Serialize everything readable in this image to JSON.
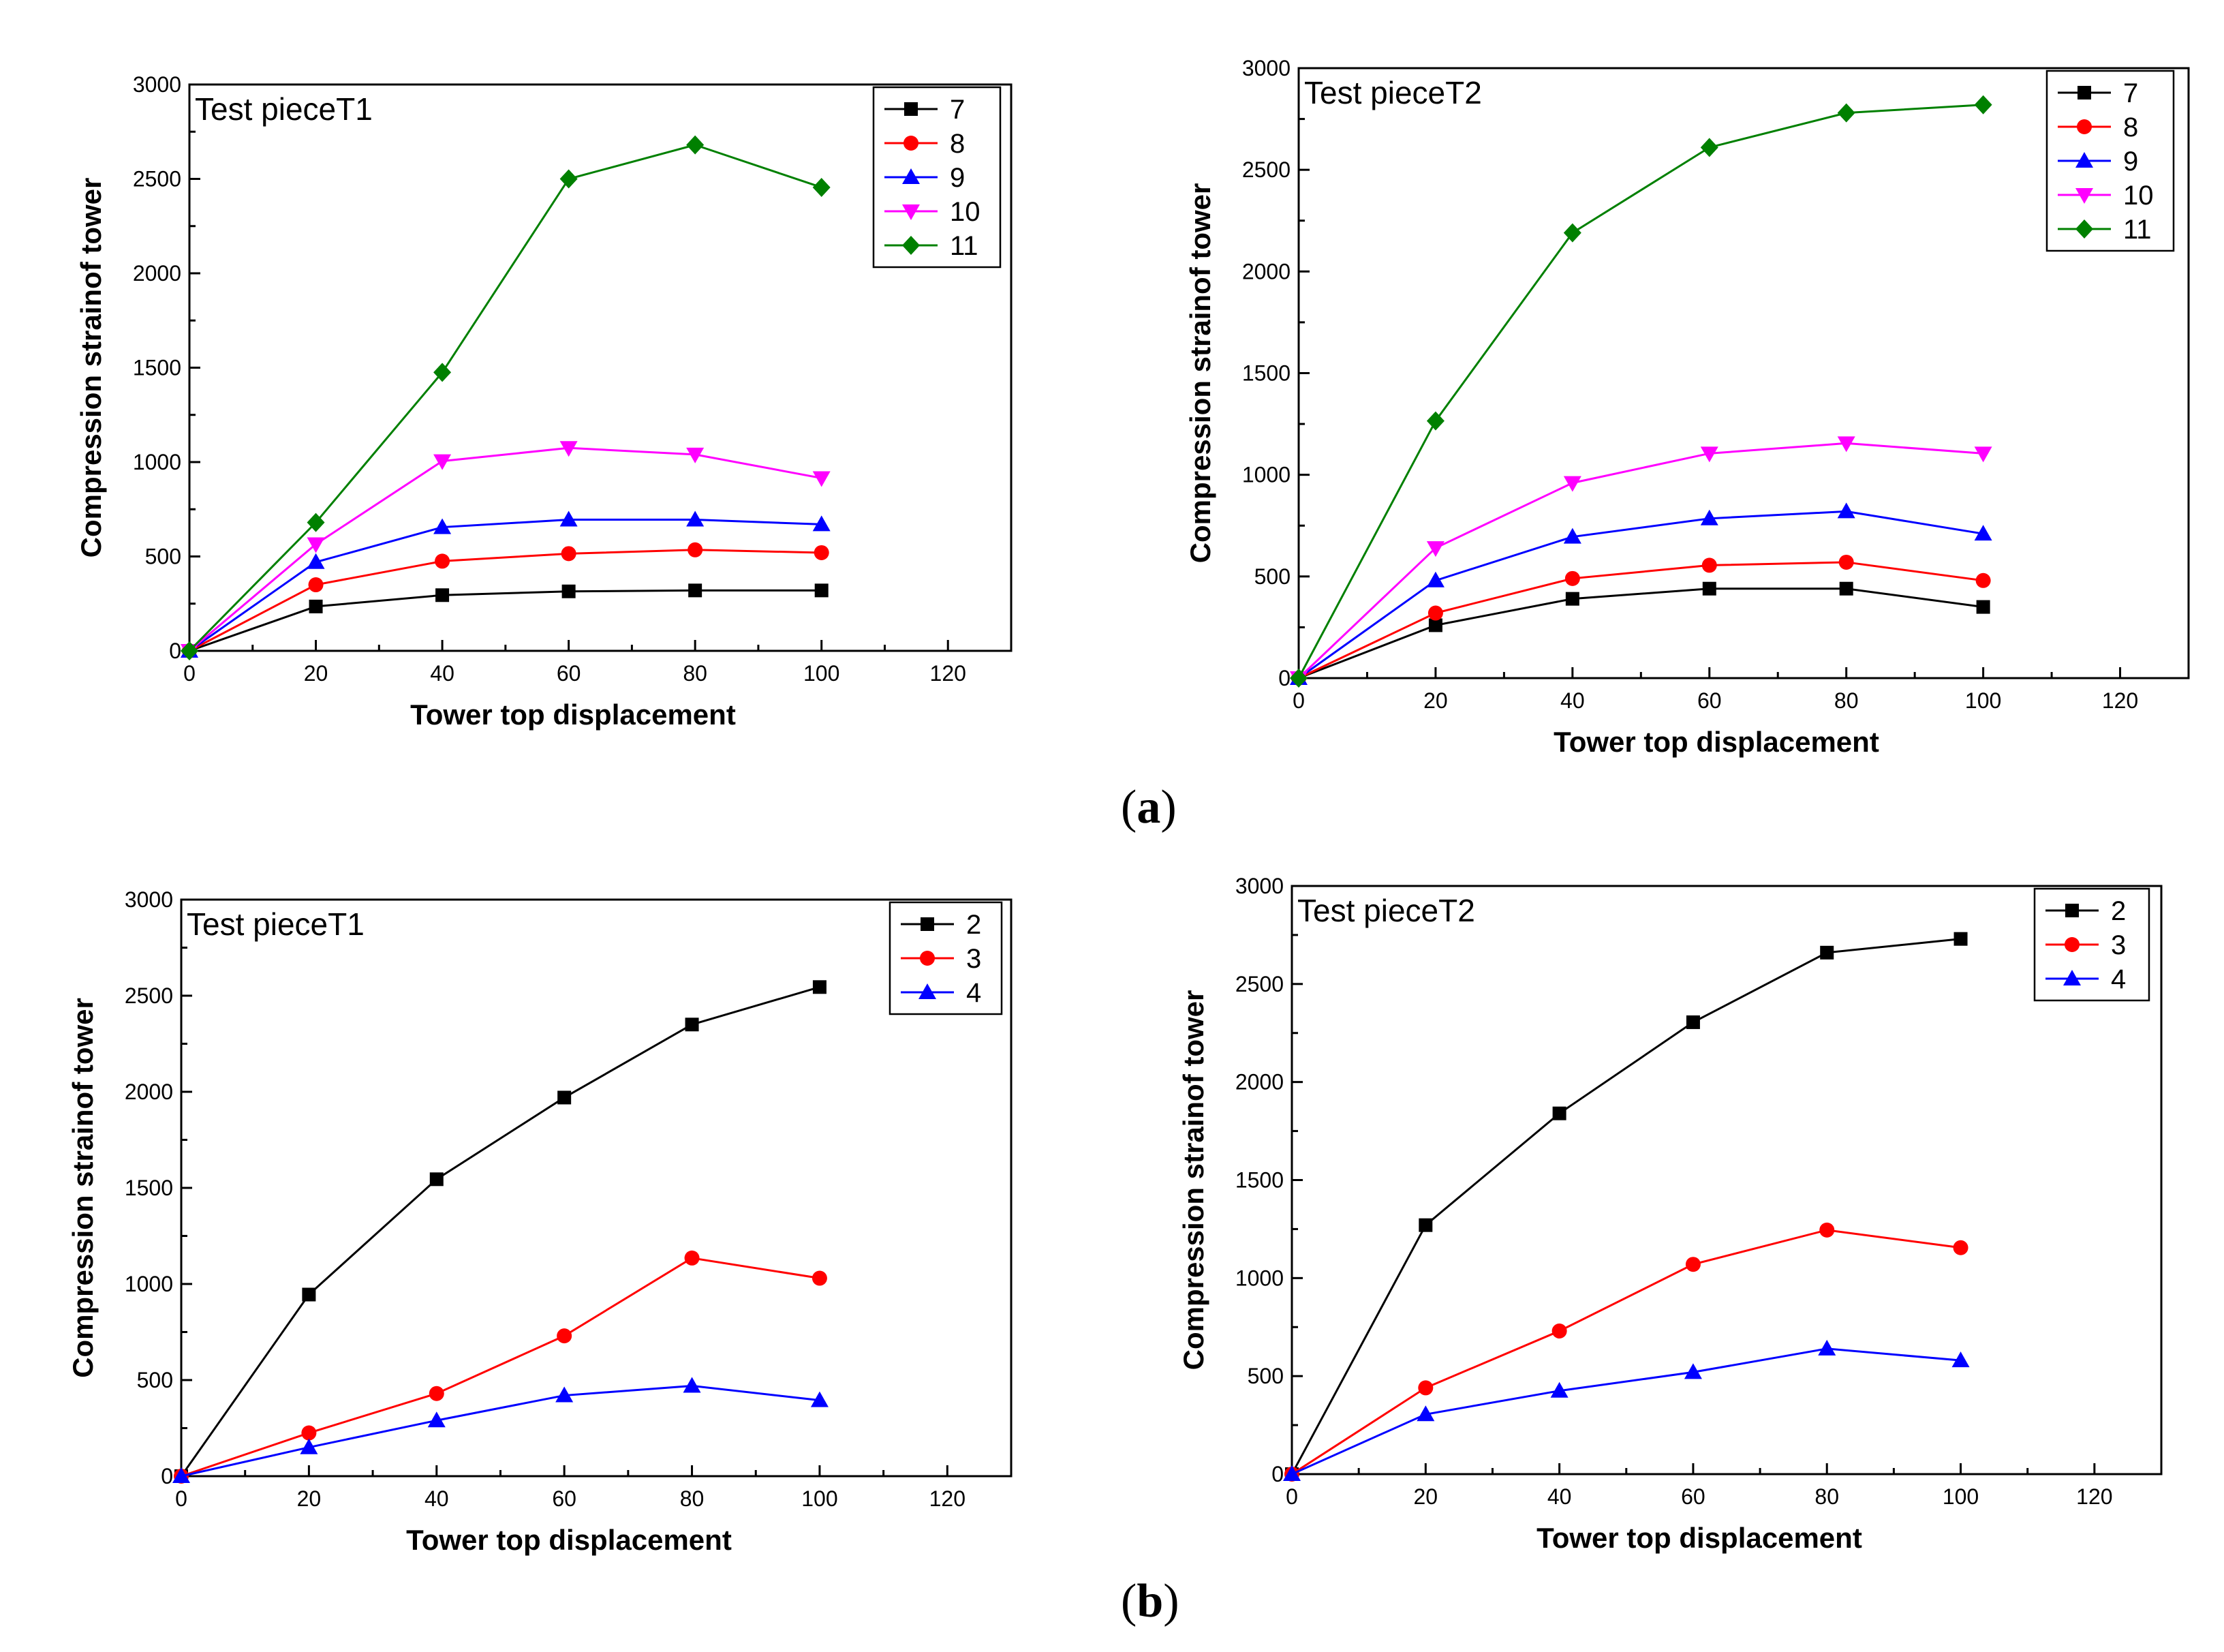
{
  "panel_labels": {
    "a": "a",
    "b": "b"
  },
  "chart_data": [
    {
      "id": "a-left",
      "type": "line",
      "title": "Test pieceT1",
      "xlabel": "Tower top displacement",
      "ylabel": "Compression strainof tower",
      "xlim": [
        0,
        130
      ],
      "ylim": [
        0,
        3000
      ],
      "xticks": [
        0,
        20,
        40,
        60,
        80,
        100,
        120
      ],
      "yticks": [
        0,
        500,
        1000,
        1500,
        2000,
        2500,
        3000
      ],
      "legend_position": "top-right",
      "x": [
        0,
        20,
        40,
        60,
        80,
        100
      ],
      "series": [
        {
          "name": "7",
          "color": "#000000",
          "marker": "square",
          "values": [
            0,
            235,
            295,
            315,
            320,
            320
          ]
        },
        {
          "name": "8",
          "color": "#ff0000",
          "marker": "circle",
          "values": [
            0,
            350,
            475,
            515,
            535,
            520
          ]
        },
        {
          "name": "9",
          "color": "#0000ff",
          "marker": "triangle-up",
          "values": [
            0,
            470,
            655,
            695,
            695,
            670
          ]
        },
        {
          "name": "10",
          "color": "#ff00ff",
          "marker": "triangle-down",
          "values": [
            0,
            565,
            1005,
            1075,
            1040,
            915
          ]
        },
        {
          "name": "11",
          "color": "#008000",
          "marker": "diamond",
          "values": [
            0,
            680,
            1475,
            2500,
            2680,
            2455
          ]
        }
      ]
    },
    {
      "id": "a-right",
      "type": "line",
      "title": "Test pieceT2",
      "xlabel": "Tower top displacement",
      "ylabel": "Compression strainof tower",
      "xlim": [
        0,
        130
      ],
      "ylim": [
        0,
        3000
      ],
      "xticks": [
        0,
        20,
        40,
        60,
        80,
        100,
        120
      ],
      "yticks": [
        0,
        500,
        1000,
        1500,
        2000,
        2500,
        3000
      ],
      "legend_position": "top-right",
      "x": [
        0,
        20,
        40,
        60,
        80,
        100
      ],
      "series": [
        {
          "name": "7",
          "color": "#000000",
          "marker": "square",
          "values": [
            0,
            260,
            390,
            440,
            440,
            350
          ]
        },
        {
          "name": "8",
          "color": "#ff0000",
          "marker": "circle",
          "values": [
            0,
            320,
            490,
            555,
            570,
            480
          ]
        },
        {
          "name": "9",
          "color": "#0000ff",
          "marker": "triangle-up",
          "values": [
            0,
            480,
            695,
            785,
            820,
            710
          ]
        },
        {
          "name": "10",
          "color": "#ff00ff",
          "marker": "triangle-down",
          "values": [
            0,
            640,
            960,
            1105,
            1155,
            1105
          ]
        },
        {
          "name": "11",
          "color": "#008000",
          "marker": "diamond",
          "values": [
            0,
            1265,
            2190,
            2610,
            2780,
            2820
          ]
        }
      ]
    },
    {
      "id": "b-left",
      "type": "line",
      "title": "Test pieceT1",
      "xlabel": "Tower top displacement",
      "ylabel": "Compression strainof tower",
      "xlim": [
        0,
        130
      ],
      "ylim": [
        0,
        3000
      ],
      "xticks": [
        0,
        20,
        40,
        60,
        80,
        100,
        120
      ],
      "yticks": [
        0,
        500,
        1000,
        1500,
        2000,
        2500,
        3000
      ],
      "legend_position": "top-right",
      "x": [
        0,
        20,
        40,
        60,
        80,
        100
      ],
      "series": [
        {
          "name": "2",
          "color": "#000000",
          "marker": "square",
          "values": [
            0,
            945,
            1545,
            1970,
            2350,
            2545
          ]
        },
        {
          "name": "3",
          "color": "#ff0000",
          "marker": "circle",
          "values": [
            0,
            225,
            430,
            730,
            1135,
            1030
          ]
        },
        {
          "name": "4",
          "color": "#0000ff",
          "marker": "triangle-up",
          "values": [
            0,
            150,
            290,
            420,
            470,
            395
          ]
        }
      ]
    },
    {
      "id": "b-right",
      "type": "line",
      "title": "Test pieceT2",
      "xlabel": "Tower top displacement",
      "ylabel": "Compression strainof tower",
      "xlim": [
        0,
        130
      ],
      "ylim": [
        0,
        3000
      ],
      "xticks": [
        0,
        20,
        40,
        60,
        80,
        100,
        120
      ],
      "yticks": [
        0,
        500,
        1000,
        1500,
        2000,
        2500,
        3000
      ],
      "legend_position": "top-right",
      "x": [
        0,
        20,
        40,
        60,
        80,
        100
      ],
      "series": [
        {
          "name": "2",
          "color": "#000000",
          "marker": "square",
          "values": [
            0,
            1270,
            1840,
            2305,
            2660,
            2730
          ]
        },
        {
          "name": "3",
          "color": "#ff0000",
          "marker": "circle",
          "values": [
            0,
            440,
            730,
            1070,
            1245,
            1155
          ]
        },
        {
          "name": "4",
          "color": "#0000ff",
          "marker": "triangle-up",
          "values": [
            0,
            305,
            425,
            520,
            640,
            580
          ]
        }
      ]
    }
  ]
}
